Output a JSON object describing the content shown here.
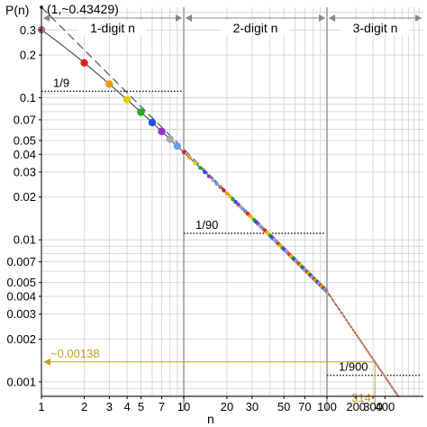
{
  "chart_data": {
    "type": "scatter",
    "title": "",
    "ylabel": "P(n)",
    "xlabel": "n",
    "xscale": "segmented-log",
    "yscale": "log",
    "grid": true,
    "xlim": [
      1,
      1000
    ],
    "ylim": [
      0.00079,
      0.43429
    ],
    "x_ticks": [
      {
        "v": 1,
        "label": "1"
      },
      {
        "v": 2,
        "label": "2"
      },
      {
        "v": 3,
        "label": "3"
      },
      {
        "v": 4,
        "label": "4"
      },
      {
        "v": 5,
        "label": "5"
      },
      {
        "v": 7,
        "label": "7"
      },
      {
        "v": 10,
        "label": "10"
      },
      {
        "v": 20,
        "label": "20"
      },
      {
        "v": 30,
        "label": "30"
      },
      {
        "v": 50,
        "label": "50"
      },
      {
        "v": 70,
        "label": "70"
      },
      {
        "v": 100,
        "label": "100"
      },
      {
        "v": 200,
        "label": "200"
      },
      {
        "v": 300,
        "label": "300"
      },
      {
        "v": 400,
        "label": "400"
      }
    ],
    "y_ticks": [
      {
        "v": 0.3,
        "label": "0.3"
      },
      {
        "v": 0.2,
        "label": "0.2"
      },
      {
        "v": 0.1,
        "label": "0.1"
      },
      {
        "v": 0.07,
        "label": "0.07"
      },
      {
        "v": 0.05,
        "label": "0.05"
      },
      {
        "v": 0.04,
        "label": "0.04"
      },
      {
        "v": 0.03,
        "label": "0.03"
      },
      {
        "v": 0.02,
        "label": "0.02"
      },
      {
        "v": 0.01,
        "label": "0.01"
      },
      {
        "v": 0.007,
        "label": "0.007"
      },
      {
        "v": 0.005,
        "label": "0.005"
      },
      {
        "v": 0.004,
        "label": "0.004"
      },
      {
        "v": 0.003,
        "label": "0.003"
      },
      {
        "v": 0.002,
        "label": "0.002"
      },
      {
        "v": 0.001,
        "label": "0.001"
      }
    ],
    "regions": [
      {
        "label": "1-digit n",
        "from": 1,
        "to": 10
      },
      {
        "label": "2-digit n",
        "from": 10,
        "to": 100
      },
      {
        "label": "3-digit n",
        "from": 100,
        "to": 1000
      }
    ],
    "reference_lines": [
      {
        "label": "1/9",
        "value": 0.1111,
        "from": 1,
        "to": 10
      },
      {
        "label": "1/90",
        "value": 0.01111,
        "from": 10,
        "to": 100
      },
      {
        "label": "1/900",
        "value": 0.001111,
        "from": 100,
        "to": 1000
      }
    ],
    "annotations": {
      "peak_label": "(1,~0.43429)",
      "threshold_label": "~0.00138",
      "threshold_value": 0.00138,
      "threshold_x_label": "314",
      "threshold_x": 314
    },
    "series": [
      {
        "formula": "log10(1+1/n)",
        "style": "solid",
        "color": "#333333"
      },
      {
        "formula": "1/(n ln 10)",
        "style": "dashed",
        "color": "#555555"
      }
    ],
    "point_colors": [
      "#aa7777",
      "#e02020",
      "#f29a10",
      "#e8c800",
      "#22aa22",
      "#2050e0",
      "#9933cc",
      "#aaaaaa",
      "#66a0ee"
    ],
    "colors": {
      "annotation": "#c8a020",
      "grid": "#d8d8d8",
      "divider": "#999999"
    }
  }
}
